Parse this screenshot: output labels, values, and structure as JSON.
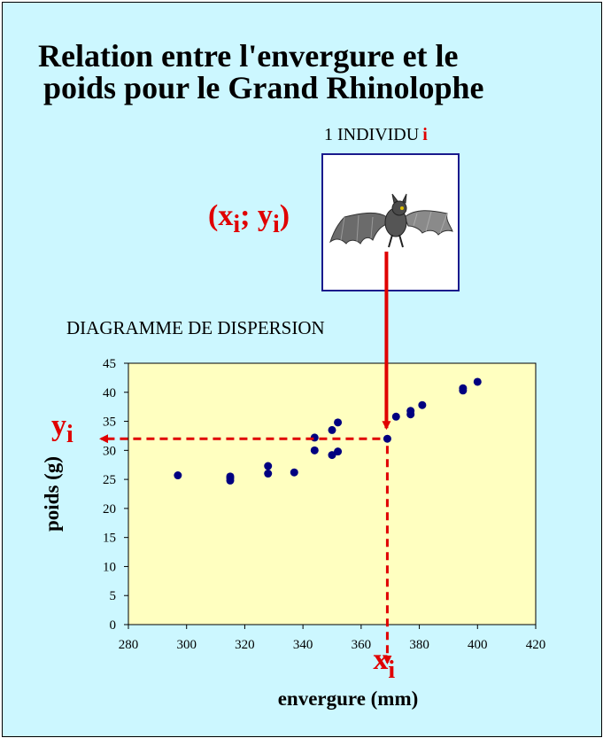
{
  "title_line1": "Relation entre l'envergure et le",
  "title_line2": "poids pour le Grand Rhinolophe",
  "individu_text": "1  INDIVIDU",
  "individu_index": "i",
  "coord_label": {
    "open": "(x",
    "sub1": "i",
    "mid": "; y",
    "sub2": "i",
    "close": ")"
  },
  "diagram_title": "DIAGRAMME DE DISPERSION",
  "yi_label": {
    "base": "y",
    "sub": "i"
  },
  "xi_label": {
    "base": "x",
    "sub": "i"
  },
  "colors": {
    "background": "#ccf7ff",
    "plot_area": "#ffffc0",
    "points": "#000080",
    "accent": "#e00000"
  },
  "chart_data": {
    "type": "scatter",
    "xlabel": "envergure (mm)",
    "ylabel": "poids (g)",
    "xlim": [
      280,
      420
    ],
    "ylim": [
      0,
      45
    ],
    "x_ticks": [
      280,
      300,
      320,
      340,
      360,
      380,
      400,
      420
    ],
    "y_ticks": [
      0,
      5,
      10,
      15,
      20,
      25,
      30,
      35,
      40,
      45
    ],
    "grid": false,
    "highlighted_point": {
      "x": 369,
      "y": 32
    },
    "points": [
      {
        "x": 297,
        "y": 25.7
      },
      {
        "x": 315,
        "y": 24.8
      },
      {
        "x": 315,
        "y": 25.2
      },
      {
        "x": 315,
        "y": 25.5
      },
      {
        "x": 328,
        "y": 26.0
      },
      {
        "x": 328,
        "y": 27.3
      },
      {
        "x": 337,
        "y": 26.2
      },
      {
        "x": 344,
        "y": 30.0
      },
      {
        "x": 344,
        "y": 32.2
      },
      {
        "x": 350,
        "y": 29.2
      },
      {
        "x": 350,
        "y": 33.5
      },
      {
        "x": 352,
        "y": 29.8
      },
      {
        "x": 352,
        "y": 34.8
      },
      {
        "x": 369,
        "y": 32.0
      },
      {
        "x": 372,
        "y": 35.8
      },
      {
        "x": 377,
        "y": 36.2
      },
      {
        "x": 377,
        "y": 36.8
      },
      {
        "x": 381,
        "y": 37.8
      },
      {
        "x": 395,
        "y": 40.3
      },
      {
        "x": 395,
        "y": 40.7
      },
      {
        "x": 400,
        "y": 41.8
      }
    ]
  }
}
